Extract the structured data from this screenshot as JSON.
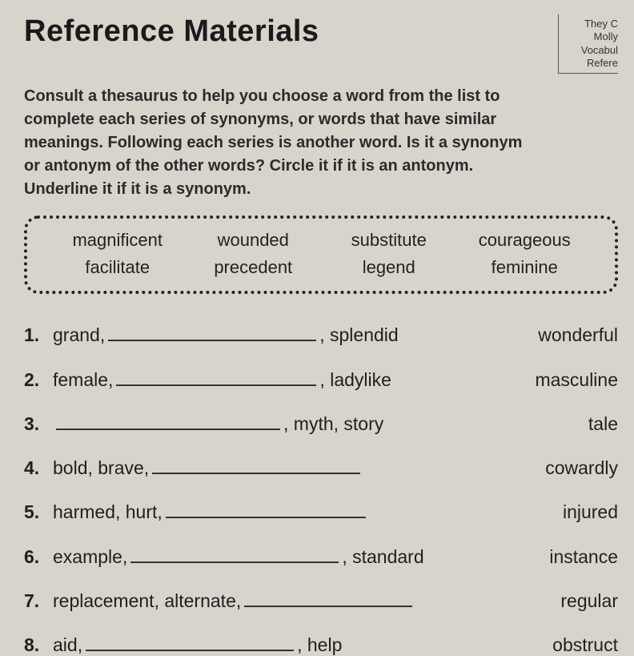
{
  "title": "Reference Materials",
  "corner": {
    "line1": "They C",
    "line2": "Molly",
    "line3": "Vocabul",
    "line4": "Refere"
  },
  "instructions": "Consult a thesaurus to help you choose a word from the list to complete each series of synonyms, or words that have similar meanings.  Following each series is another word.  Is it a synonym or antonym of the other words?  Circle it if it is an antonym. Underline it if it is a synonym.",
  "word_bank": {
    "row1": [
      "magnificent",
      "wounded",
      "substitute",
      "courageous"
    ],
    "row2": [
      "facilitate",
      "precedent",
      "legend",
      "feminine"
    ]
  },
  "questions": [
    {
      "num": "1.",
      "before": "grand,",
      "after": ", splendid",
      "blank_w": 260,
      "right": "wonderful"
    },
    {
      "num": "2.",
      "before": "female,",
      "after": ", ladylike",
      "blank_w": 250,
      "right": "masculine"
    },
    {
      "num": "3.",
      "before": "",
      "after": ", myth, story",
      "blank_w": 280,
      "right": "tale"
    },
    {
      "num": "4.",
      "before": "bold, brave,",
      "after": "",
      "blank_w": 260,
      "right": "cowardly"
    },
    {
      "num": "5.",
      "before": "harmed, hurt,",
      "after": "",
      "blank_w": 250,
      "right": "injured"
    },
    {
      "num": "6.",
      "before": "example,",
      "after": ", standard",
      "blank_w": 260,
      "right": "instance"
    },
    {
      "num": "7.",
      "before": "replacement, alternate,",
      "after": "",
      "blank_w": 210,
      "right": "regular"
    },
    {
      "num": "8.",
      "before": "aid,",
      "after": ", help",
      "blank_w": 260,
      "right": "obstruct"
    }
  ],
  "styling": {
    "background_color": "#d8d4cc",
    "text_color": "#2a2a2a",
    "title_fontsize": 38,
    "body_fontsize": 20,
    "question_fontsize": 23,
    "bank_fontsize": 22,
    "bank_border": "4px dotted #222",
    "blank_border": "2px solid #333"
  }
}
